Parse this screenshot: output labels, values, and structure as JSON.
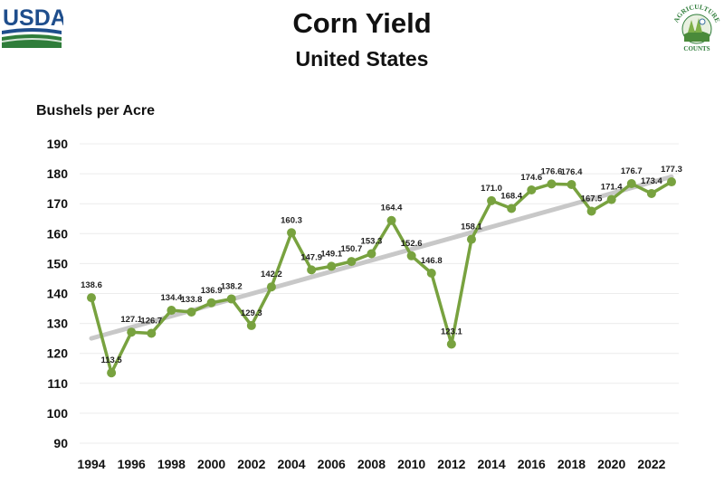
{
  "header": {
    "title": "Corn Yield",
    "subtitle": "United States",
    "usda_logo_text": "USDA",
    "nass_logo_text_top": "AGRICULTURE",
    "nass_logo_text_bottom": "COUNTS"
  },
  "colors": {
    "series": "#78a23f",
    "trend": "#c8c8c8",
    "usda_blue": "#1f4e8c",
    "usda_green": "#2f7d3a"
  },
  "chart_data": {
    "type": "line",
    "title": "Corn Yield",
    "subtitle": "United States",
    "ylabel": "Bushels per Acre",
    "xlabel": "",
    "ylim": [
      90,
      190
    ],
    "yticks": [
      90,
      100,
      110,
      120,
      130,
      140,
      150,
      160,
      170,
      180,
      190
    ],
    "xticks": [
      1994,
      1996,
      1998,
      2000,
      2002,
      2004,
      2006,
      2008,
      2010,
      2012,
      2014,
      2016,
      2018,
      2020,
      2022
    ],
    "grid": "horizontal",
    "legend": "none",
    "data_labels": true,
    "trendline": true,
    "series": [
      {
        "x": [
          1994,
          1995,
          1996,
          1997,
          1998,
          1999,
          2000,
          2001,
          2002,
          2003,
          2004,
          2005,
          2006,
          2007,
          2008,
          2009,
          2010,
          2011,
          2012,
          2013,
          2014,
          2015,
          2016,
          2017,
          2018,
          2019,
          2020,
          2021,
          2022,
          2023
        ],
        "values": [
          138.6,
          113.5,
          127.1,
          126.7,
          134.4,
          133.8,
          136.9,
          138.2,
          129.3,
          142.2,
          160.3,
          147.9,
          149.1,
          150.7,
          153.3,
          164.4,
          152.6,
          146.8,
          123.1,
          158.1,
          171.0,
          168.4,
          174.6,
          176.6,
          176.4,
          167.5,
          171.4,
          176.7,
          173.4,
          177.3
        ],
        "labels": [
          "138.6",
          "113.5",
          "127.1",
          "126.7",
          "134.4",
          "133.8",
          "136.9",
          "138.2",
          "129.3",
          "142.2",
          "160.3",
          "147.9",
          "149.1",
          "150.7",
          "153.3",
          "164.4",
          "152.6",
          "146.8",
          "123.1",
          "158.1",
          "171.0",
          "168.4",
          "174.6",
          "176.6",
          "176.4",
          "167.5",
          "171.4",
          "176.7",
          "173.4",
          "177.3"
        ]
      }
    ]
  }
}
